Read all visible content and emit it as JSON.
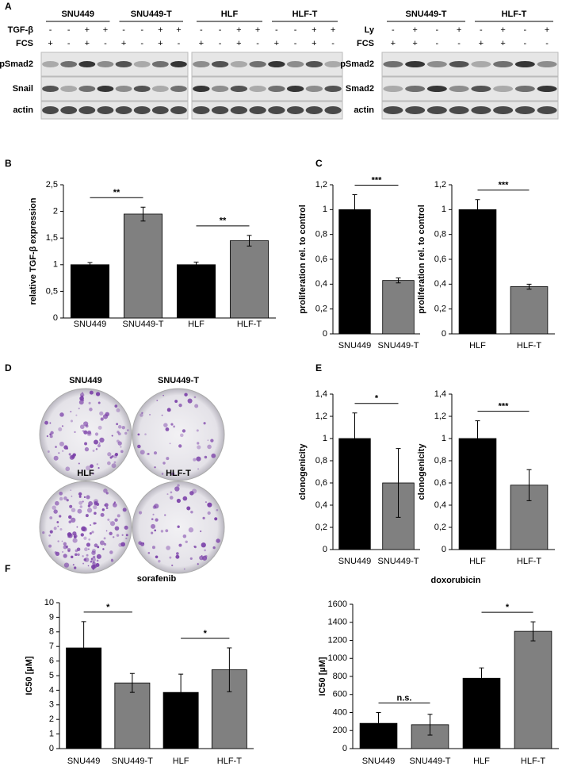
{
  "panel_labels": [
    "A",
    "B",
    "C",
    "D",
    "E",
    "F"
  ],
  "western_blots": [
    {
      "groups": [
        "SNU449",
        "SNU449-T"
      ],
      "treatments": [
        {
          "name": "TGF-β",
          "signs": [
            "-",
            "-",
            "+",
            "+",
            "-",
            "-",
            "+",
            "+"
          ]
        },
        {
          "name": "FCS",
          "signs": [
            "+",
            "-",
            "+",
            "-",
            "+",
            "-",
            "+",
            "-"
          ]
        }
      ],
      "proteins": [
        "pSmad2",
        "Snail",
        "actin"
      ]
    },
    {
      "groups": [
        "HLF",
        "HLF-T"
      ],
      "treatments": [
        {
          "signs": [
            "-",
            "-",
            "+",
            "+",
            "-",
            "-",
            "+",
            "+"
          ]
        },
        {
          "signs": [
            "+",
            "-",
            "+",
            "-",
            "+",
            "-",
            "+",
            "-"
          ]
        }
      ]
    },
    {
      "groups": [
        "SNU449-T",
        "HLF-T"
      ],
      "treatments": [
        {
          "name": "Ly",
          "signs": [
            "-",
            "+",
            "-",
            "+",
            "-",
            "+",
            "-",
            "+"
          ]
        },
        {
          "name": "FCS",
          "signs": [
            "+",
            "+",
            "-",
            "-",
            "+",
            "+",
            "-",
            "-"
          ]
        }
      ],
      "proteins": [
        "pSmad2",
        "Smad2",
        "actin"
      ]
    }
  ],
  "colonies": {
    "labels": [
      "SNU449",
      "SNU449-T",
      "HLF",
      "HLF-T"
    ]
  },
  "chart_data": [
    {
      "type": "bar",
      "ylabel": "relative TGF-β expression",
      "categories": [
        "SNU449",
        "SNU449-T",
        "HLF",
        "HLF-T"
      ],
      "values": [
        1,
        1.95,
        1,
        1.45
      ],
      "errors": [
        0.04,
        0.13,
        0.05,
        0.1
      ],
      "colors": [
        "#000000",
        "#808080",
        "#000000",
        "#808080"
      ],
      "ylim": [
        0,
        2.5
      ],
      "yticks": [
        0,
        {
          "value": 0.5,
          "label": "0,5"
        },
        1,
        {
          "value": 1.5,
          "label": "1,5"
        },
        2,
        {
          "value": 2.5,
          "label": "2,5"
        }
      ],
      "annotations": [
        "**",
        "**"
      ]
    },
    {
      "type": "bar",
      "ylabel": "proliferation rel. to control",
      "categories": [
        "SNU449",
        "SNU449-T"
      ],
      "values": [
        1,
        0.43
      ],
      "errors": [
        0.12,
        0.02
      ],
      "colors": [
        "#000000",
        "#808080"
      ],
      "ylim": [
        0,
        1.2
      ],
      "yticks": [
        0,
        {
          "value": 0.2,
          "label": "0,2"
        },
        {
          "value": 0.4,
          "label": "0,4"
        },
        {
          "value": 0.6,
          "label": "0,6"
        },
        {
          "value": 0.8,
          "label": "0,8"
        },
        1,
        {
          "value": 1.2,
          "label": "1,2"
        }
      ],
      "annotations": [
        "***"
      ]
    },
    {
      "type": "bar",
      "ylabel": "proliferation rel. to control",
      "categories": [
        "HLF",
        "HLF-T"
      ],
      "values": [
        1,
        0.38
      ],
      "errors": [
        0.08,
        0.02
      ],
      "colors": [
        "#000000",
        "#808080"
      ],
      "ylim": [
        0,
        1.2
      ],
      "yticks": [
        0,
        {
          "value": 0.2,
          "label": "0,2"
        },
        {
          "value": 0.4,
          "label": "0,4"
        },
        {
          "value": 0.6,
          "label": "0,6"
        },
        {
          "value": 0.8,
          "label": "0,8"
        },
        1,
        {
          "value": 1.2,
          "label": "1,2"
        }
      ],
      "annotations": [
        "***"
      ]
    },
    {
      "type": "bar",
      "ylabel": "clonogenicity",
      "categories": [
        "SNU449",
        "SNU449-T"
      ],
      "values": [
        1,
        0.6
      ],
      "errors": [
        0.23,
        0.31
      ],
      "colors": [
        "#000000",
        "#808080"
      ],
      "ylim": [
        0,
        1.4
      ],
      "yticks": [
        0,
        {
          "value": 0.2,
          "label": "0,2"
        },
        {
          "value": 0.4,
          "label": "0,4"
        },
        {
          "value": 0.6,
          "label": "0,6"
        },
        {
          "value": 0.8,
          "label": "0,8"
        },
        1,
        {
          "value": 1.2,
          "label": "1,2"
        },
        {
          "value": 1.4,
          "label": "1,4"
        }
      ],
      "annotations": [
        "*"
      ]
    },
    {
      "type": "bar",
      "ylabel": "clonogenicity",
      "categories": [
        "HLF",
        "HLF-T"
      ],
      "values": [
        1,
        0.58
      ],
      "errors": [
        0.16,
        0.14
      ],
      "colors": [
        "#000000",
        "#808080"
      ],
      "ylim": [
        0,
        1.4
      ],
      "yticks": [
        0,
        {
          "value": 0.2,
          "label": "0,2"
        },
        {
          "value": 0.4,
          "label": "0,4"
        },
        {
          "value": 0.6,
          "label": "0,6"
        },
        {
          "value": 0.8,
          "label": "0,8"
        },
        1,
        {
          "value": 1.2,
          "label": "1,2"
        },
        {
          "value": 1.4,
          "label": "1,4"
        }
      ],
      "annotations": [
        "***"
      ]
    },
    {
      "type": "bar",
      "title": "sorafenib",
      "ylabel": "IC50 [µM]",
      "categories": [
        "SNU449",
        "SNU449-T",
        "HLF",
        "HLF-T"
      ],
      "values": [
        6.9,
        4.5,
        3.85,
        5.4
      ],
      "errors": [
        1.8,
        0.65,
        1.25,
        1.5
      ],
      "colors": [
        "#000000",
        "#808080",
        "#000000",
        "#808080"
      ],
      "ylim": [
        0,
        10
      ],
      "yticks": [
        0,
        1,
        2,
        3,
        4,
        5,
        6,
        7,
        8,
        9,
        10
      ],
      "annotations": [
        "*",
        "*"
      ]
    },
    {
      "type": "bar",
      "title": "doxorubicin",
      "ylabel": "IC50 [µM]",
      "categories": [
        "SNU449",
        "SNU449-T",
        "HLF",
        "HLF-T"
      ],
      "values": [
        280,
        265,
        780,
        1300
      ],
      "errors": [
        120,
        115,
        115,
        105
      ],
      "colors": [
        "#000000",
        "#808080",
        "#000000",
        "#808080"
      ],
      "ylim": [
        0,
        1600
      ],
      "yticks": [
        0,
        200,
        400,
        600,
        800,
        1000,
        1200,
        1400,
        1600
      ],
      "annotations": [
        "n.s.",
        "*"
      ]
    }
  ]
}
